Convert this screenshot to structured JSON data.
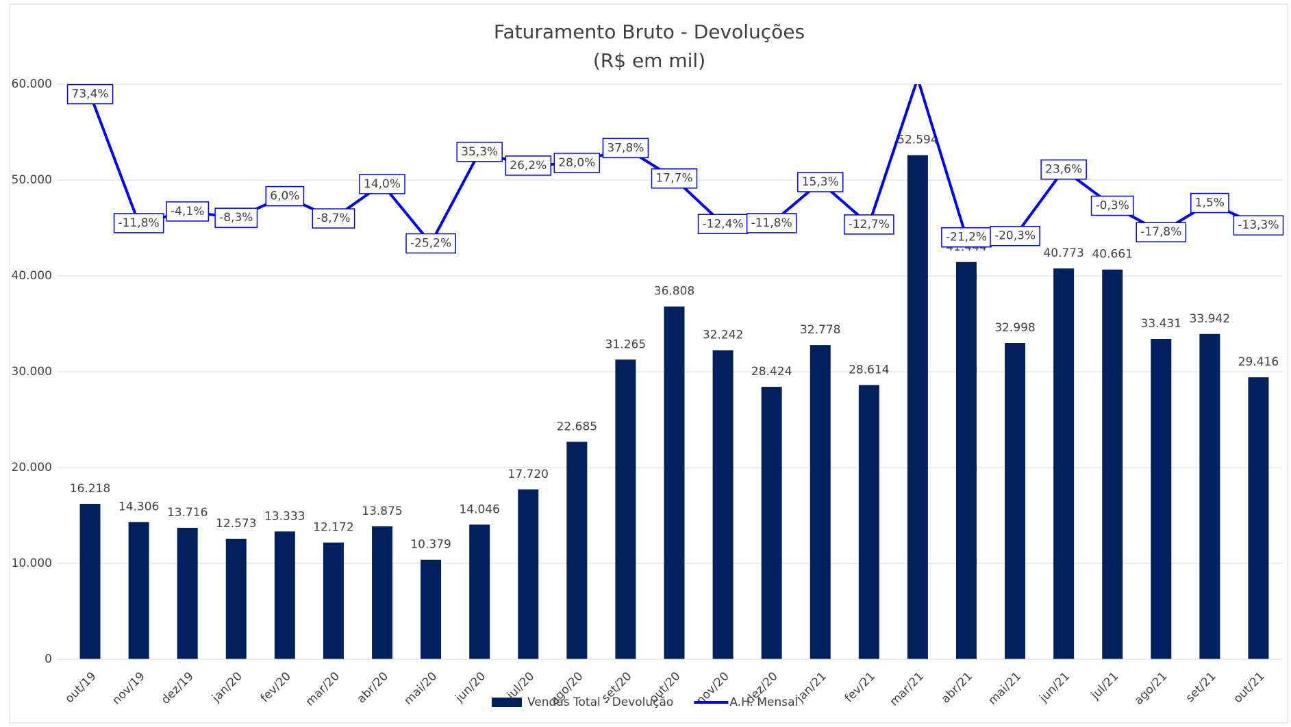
{
  "chart_data": {
    "type": "bar_line",
    "title": "Faturamento Bruto - Devoluções",
    "subtitle": "(R$ em mil)",
    "categories": [
      "out/19",
      "nov/19",
      "dez/19",
      "jan/20",
      "fev/20",
      "mar/20",
      "abr/20",
      "mai/20",
      "jun/20",
      "jul/20",
      "ago/20",
      "set/20",
      "out/20",
      "nov/20",
      "dez/20",
      "jan/21",
      "fev/21",
      "mar/21",
      "abr/21",
      "mai/21",
      "jun/21",
      "jul/21",
      "ago/21",
      "set/21",
      "out/21"
    ],
    "series": [
      {
        "name": "Vendas Total - Devolução",
        "color": "#002060",
        "type": "bar",
        "values": [
          16218,
          14306,
          13716,
          12573,
          13333,
          12172,
          13875,
          10379,
          14046,
          17720,
          22685,
          31265,
          36808,
          32242,
          28424,
          32778,
          28614,
          52594,
          41444,
          32998,
          40773,
          40661,
          33431,
          33942,
          29416
        ],
        "value_labels": [
          "16.218",
          "14.306",
          "13.716",
          "12.573",
          "13.333",
          "12.172",
          "13.875",
          "10.379",
          "14.046",
          "17.720",
          "22.685",
          "31.265",
          "36.808",
          "32.242",
          "28.424",
          "32.778",
          "28.614",
          "52.594",
          "41.444",
          "32.998",
          "40.773",
          "40.661",
          "33.431",
          "33.942",
          "29.416"
        ]
      },
      {
        "name": "A.H. Mensal",
        "color": "#0000ff",
        "type": "line",
        "axis": "y2",
        "values": [
          73.4,
          -11.8,
          -4.1,
          -8.3,
          6.0,
          -8.7,
          14.0,
          -25.2,
          35.3,
          26.2,
          28.0,
          37.8,
          17.7,
          -12.4,
          -11.8,
          15.3,
          -12.7,
          83.8,
          -21.2,
          -20.3,
          23.6,
          -0.3,
          -17.8,
          1.5,
          -13.3
        ],
        "value_labels": [
          "73,4%",
          "-11,8%",
          "-4,1%",
          "-8,3%",
          "6,0%",
          "-8,7%",
          "14,0%",
          "-25,2%",
          "35,3%",
          "26,2%",
          "28,0%",
          "37,8%",
          "17,7%",
          "-12,4%",
          "-11,8%",
          "15,3%",
          "-12,7%",
          null,
          "-21,2%",
          "-20,3%",
          "23,6%",
          "-0,3%",
          "-17,8%",
          "1,5%",
          "-13,3%"
        ]
      }
    ],
    "ylim": [
      0,
      60000
    ],
    "yticks": [
      0,
      {
        "value": 10000,
        "label": "10.000"
      },
      {
        "value": 20000,
        "label": "20.000"
      },
      {
        "value": 30000,
        "label": "30.000"
      },
      {
        "value": 40000,
        "label": "40.000"
      },
      {
        "value": 50000,
        "label": "50.000"
      },
      {
        "value": 60000,
        "label": "60.000"
      }
    ],
    "y2lim": [
      -300,
      80
    ],
    "grid": true,
    "legend": "bottom"
  }
}
